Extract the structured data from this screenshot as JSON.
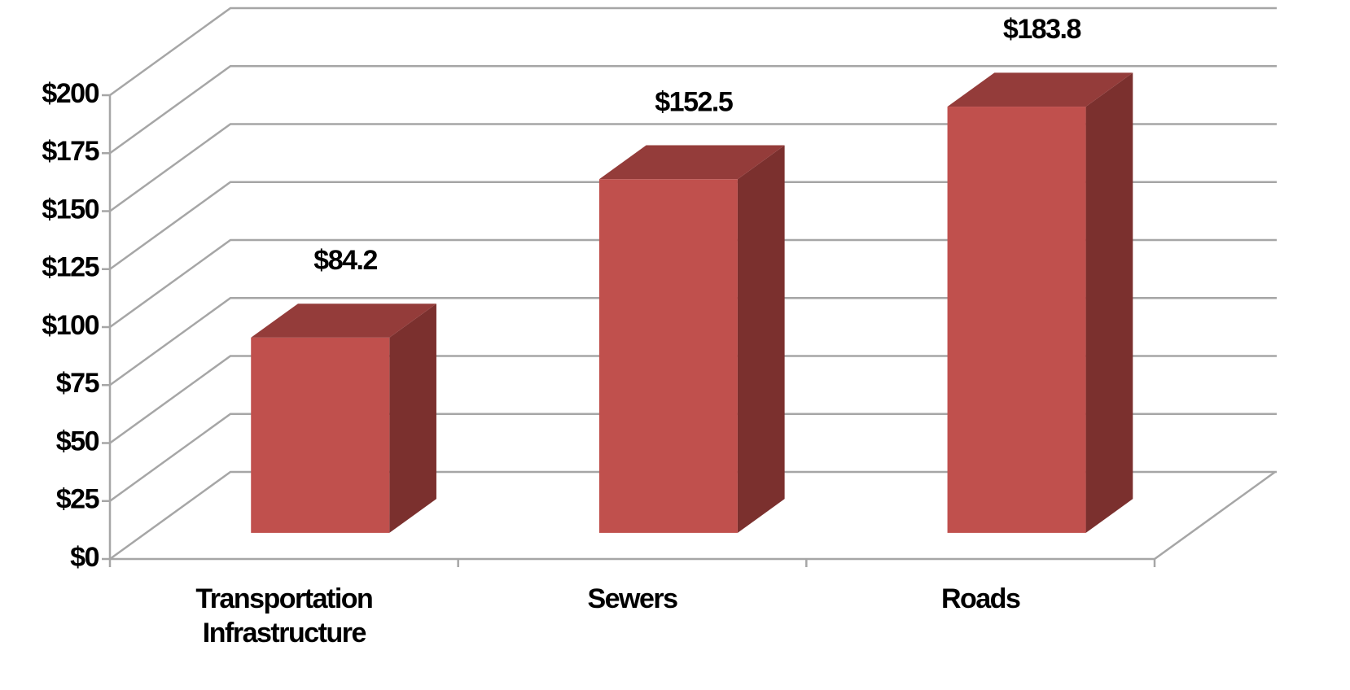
{
  "chart_data": {
    "type": "bar3d",
    "categories": [
      "Transportation Infrastructure",
      "Sewers",
      "Roads"
    ],
    "values": [
      84.2,
      152.5,
      183.8
    ],
    "value_labels": [
      "$84.2",
      "$152.5",
      "$183.8"
    ],
    "color": "#c0504d",
    "ylim": [
      0,
      200
    ],
    "yticks": [
      {
        "value": 0,
        "label": "$0"
      },
      {
        "value": 25,
        "label": "$25"
      },
      {
        "value": 50,
        "label": "$50"
      },
      {
        "value": 75,
        "label": "$75"
      },
      {
        "value": 100,
        "label": "$100"
      },
      {
        "value": 125,
        "label": "$125"
      },
      {
        "value": 150,
        "label": "$150"
      },
      {
        "value": 175,
        "label": "$175"
      },
      {
        "value": 200,
        "label": "$200"
      }
    ],
    "grid": true
  }
}
